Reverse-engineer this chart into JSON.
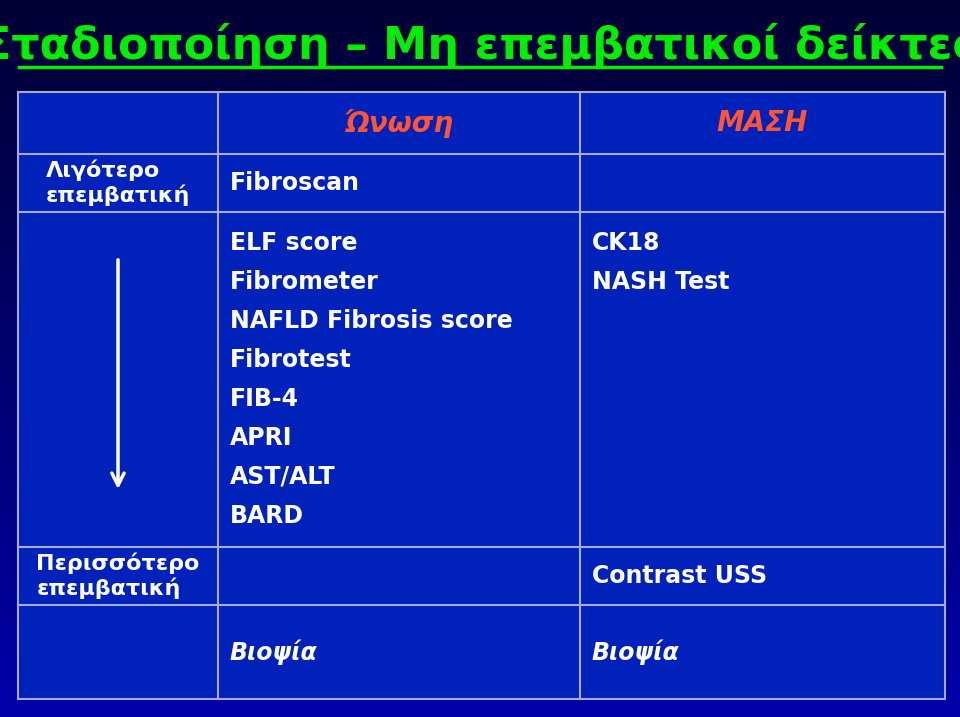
{
  "title": "Σταδιοποίηση – Μη επεμβατικοί δείκτες",
  "title_color": "#00ee00",
  "header_col2": "Ώνωση",
  "header_col3": "ΜΑΣΗ",
  "header_color": "#FF5533",
  "col1_label_top": "Λιγότερο\nεπεμβατική",
  "col1_label_bottom": "Περισσότερο\nεπεμβατική",
  "fibroscan": "Fibroscan",
  "col2_items": [
    "ELF score",
    "Fibrometer",
    "NAFLD Fibrosis score",
    "Fibrotest",
    "FIB-4",
    "APRI",
    "AST/ALT",
    "BARD"
  ],
  "col3_items_top": [
    "CK18",
    "NASH Test"
  ],
  "col3_contrast": "Contrast USS",
  "col2_biopsy": "Βιοψία",
  "col3_biopsy": "Βιοψία",
  "text_color": "#ffffff",
  "grid_color": "#aaaacc",
  "bg_top": "#000033",
  "bg_bottom": "#0000aa",
  "table_bg": "#0022bb",
  "font_size_title": 32,
  "font_size_header": 20,
  "font_size_cell": 17,
  "font_size_col1": 16
}
